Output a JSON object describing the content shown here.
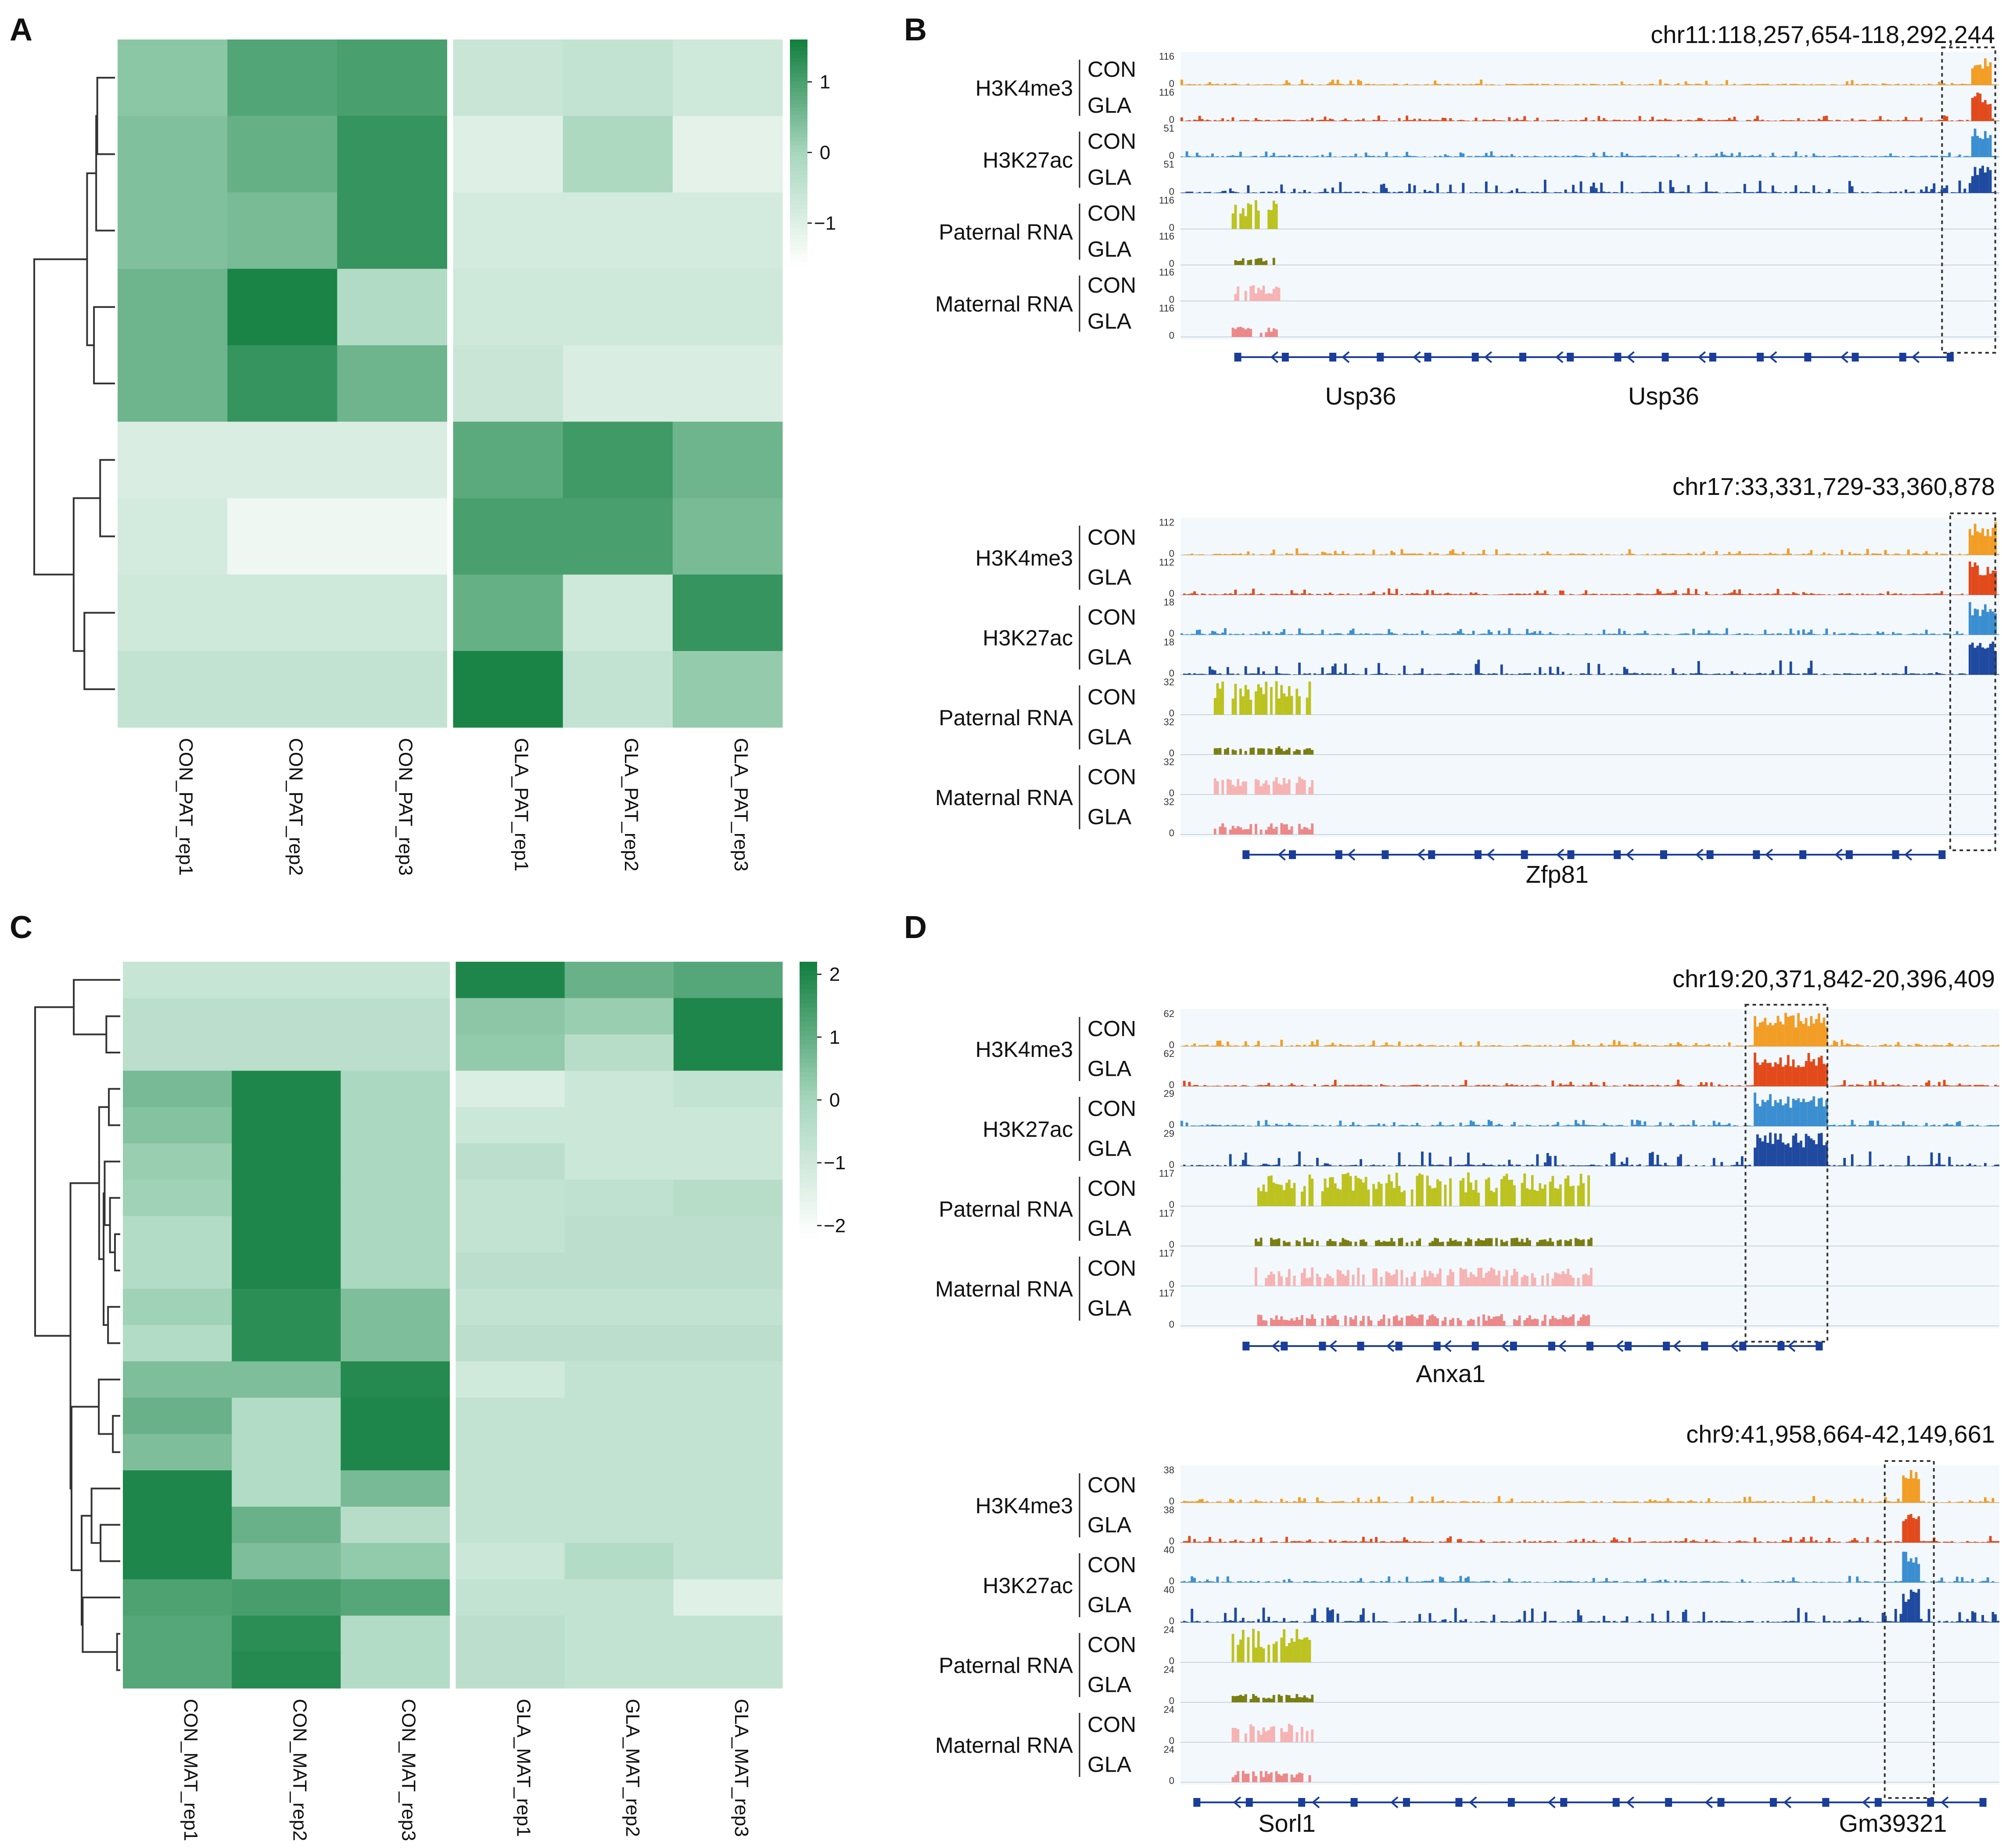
{
  "panel_labels": {
    "A": "A",
    "B": "B",
    "C": "C",
    "D": "D"
  },
  "chart_data": [
    {
      "panel": "A",
      "type": "heatmap",
      "columns": [
        "CON_PAT_rep1",
        "CON_PAT_rep2",
        "CON_PAT_rep3",
        "GLA_PAT_rep1",
        "GLA_PAT_rep2",
        "GLA_PAT_rep3"
      ],
      "matrix": [
        [
          0.3,
          0.9,
          1.0,
          -0.6,
          -0.5,
          -0.7
        ],
        [
          0.4,
          0.7,
          1.2,
          -1.0,
          -0.1,
          -1.1
        ],
        [
          0.4,
          0.5,
          1.2,
          -0.8,
          -0.8,
          -0.8
        ],
        [
          0.6,
          1.5,
          -0.2,
          -0.7,
          -0.7,
          -0.7
        ],
        [
          0.6,
          1.2,
          0.6,
          -0.6,
          -0.9,
          -0.9
        ],
        [
          -0.9,
          -0.9,
          -0.9,
          0.8,
          1.1,
          0.6
        ],
        [
          -0.8,
          -1.3,
          -1.3,
          1.0,
          1.0,
          0.5
        ],
        [
          -0.7,
          -0.7,
          -0.7,
          0.7,
          -0.7,
          1.2
        ],
        [
          -0.5,
          -0.5,
          -0.5,
          1.5,
          -0.5,
          0.2
        ]
      ],
      "colorbar": {
        "ticks": [
          "1",
          "0",
          "−1"
        ],
        "tick_values": [
          1,
          0,
          -1
        ],
        "range": [
          -1.6,
          1.6
        ]
      },
      "dendrogram": "rows",
      "split_after_column": 3
    },
    {
      "panel": "C",
      "type": "heatmap",
      "columns": [
        "CON_MAT_rep1",
        "CON_MAT_rep2",
        "CON_MAT_rep3",
        "GLA_MAT_rep1",
        "GLA_MAT_rep2",
        "GLA_MAT_rep3"
      ],
      "matrix": [
        [
          -0.8,
          -0.8,
          -0.8,
          2.0,
          0.9,
          1.2
        ],
        [
          -0.5,
          -0.5,
          -0.5,
          0.4,
          0.2,
          2.0
        ],
        [
          -0.5,
          -0.5,
          -0.5,
          0.3,
          -0.4,
          2.0
        ],
        [
          0.7,
          2.0,
          -0.1,
          -1.3,
          -0.9,
          -0.7
        ],
        [
          0.5,
          2.0,
          -0.1,
          -0.9,
          -0.9,
          -0.9
        ],
        [
          0.2,
          2.0,
          -0.1,
          -0.5,
          -0.9,
          -0.9
        ],
        [
          0.1,
          2.0,
          -0.1,
          -0.7,
          -0.6,
          -0.4
        ],
        [
          -0.3,
          2.0,
          -0.1,
          -0.7,
          -0.5,
          -0.5
        ],
        [
          -0.3,
          2.0,
          -0.1,
          -0.5,
          -0.5,
          -0.5
        ],
        [
          0.1,
          1.8,
          0.6,
          -0.7,
          -0.7,
          -0.7
        ],
        [
          -0.3,
          1.8,
          0.6,
          -0.5,
          -0.5,
          -0.5
        ],
        [
          0.6,
          0.6,
          1.9,
          -1.0,
          -0.7,
          -0.7
        ],
        [
          0.9,
          -0.3,
          2.0,
          -0.7,
          -0.7,
          -0.7
        ],
        [
          0.6,
          -0.3,
          2.0,
          -0.7,
          -0.7,
          -0.7
        ],
        [
          2.0,
          -0.3,
          0.7,
          -0.7,
          -0.7,
          -0.7
        ],
        [
          2.0,
          0.9,
          -0.4,
          -0.7,
          -0.7,
          -0.7
        ],
        [
          2.0,
          0.6,
          0.3,
          -0.9,
          -0.3,
          -0.7
        ],
        [
          1.3,
          1.4,
          1.2,
          -0.7,
          -0.7,
          -1.4
        ],
        [
          1.2,
          1.8,
          -0.3,
          -0.5,
          -0.7,
          -0.7
        ],
        [
          1.2,
          1.9,
          -0.3,
          -0.5,
          -0.7,
          -0.7
        ]
      ],
      "colorbar": {
        "ticks": [
          "2",
          "1",
          "0",
          "−1",
          "−2"
        ],
        "tick_values": [
          2,
          1,
          0,
          -1,
          -2
        ],
        "range": [
          -2.2,
          2.2
        ]
      },
      "dendrogram": "rows",
      "split_after_column": 3
    }
  ],
  "tracks": [
    {
      "panel": "B",
      "locus": "chr11:118,257,654-118,292,244",
      "marks": [
        {
          "label": "H3K4me3",
          "scales": [
            "116",
            "116"
          ]
        },
        {
          "label": "H3K27ac",
          "scales": [
            "51",
            "51"
          ]
        },
        {
          "label": "Paternal RNA",
          "scales": [
            "116",
            "116"
          ]
        },
        {
          "label": "Maternal RNA",
          "scales": [
            "116",
            "116"
          ]
        }
      ],
      "genes": [
        "Usp36",
        "Usp36"
      ]
    },
    {
      "panel": "B",
      "locus": "chr17:33,331,729-33,360,878",
      "marks": [
        {
          "label": "H3K4me3",
          "scales": [
            "112",
            "112"
          ]
        },
        {
          "label": "H3K27ac",
          "scales": [
            "18",
            "18"
          ]
        },
        {
          "label": "Paternal RNA",
          "scales": [
            "32",
            "32"
          ]
        },
        {
          "label": "Maternal RNA",
          "scales": [
            "32",
            "32"
          ]
        }
      ],
      "genes": [
        "Zfp81"
      ]
    },
    {
      "panel": "D",
      "locus": "chr19:20,371,842-20,396,409",
      "marks": [
        {
          "label": "H3K4me3",
          "scales": [
            "62",
            "62"
          ]
        },
        {
          "label": "H3K27ac",
          "scales": [
            "29",
            "29"
          ]
        },
        {
          "label": "Paternal RNA",
          "scales": [
            "117",
            "117"
          ]
        },
        {
          "label": "Maternal RNA",
          "scales": [
            "117",
            "117"
          ]
        }
      ],
      "genes": [
        "Anxa1"
      ]
    },
    {
      "panel": "D",
      "locus": "chr9:41,958,664-42,149,661",
      "marks": [
        {
          "label": "H3K4me3",
          "scales": [
            "38",
            "38"
          ]
        },
        {
          "label": "H3K27ac",
          "scales": [
            "40",
            "40"
          ]
        },
        {
          "label": "Paternal RNA",
          "scales": [
            "24",
            "24"
          ]
        },
        {
          "label": "Maternal RNA",
          "scales": [
            "24",
            "24"
          ]
        }
      ],
      "genes": [
        "Sorl1",
        "Gm39321"
      ]
    }
  ],
  "conditions": [
    "CON",
    "GLA"
  ],
  "zero_label": "0",
  "colors": {
    "heat_low": "#ffffff",
    "heat_mid": "#a7d6bd",
    "heat_high": "#107e3e",
    "H3K4me3_CON": "#f29d25",
    "H3K4me3_GLA": "#e24a1c",
    "H3K27ac_CON": "#3b8fd1",
    "H3K27ac_GLA": "#1f4aa0",
    "Paternal_CON": "#bcc21f",
    "Paternal_GLA": "#7a7e12",
    "Maternal_CON": "#f6b3b3",
    "Maternal_GLA": "#ec8888",
    "track_bg": "#f3f8fc",
    "gene_model": "#1a3d99"
  }
}
